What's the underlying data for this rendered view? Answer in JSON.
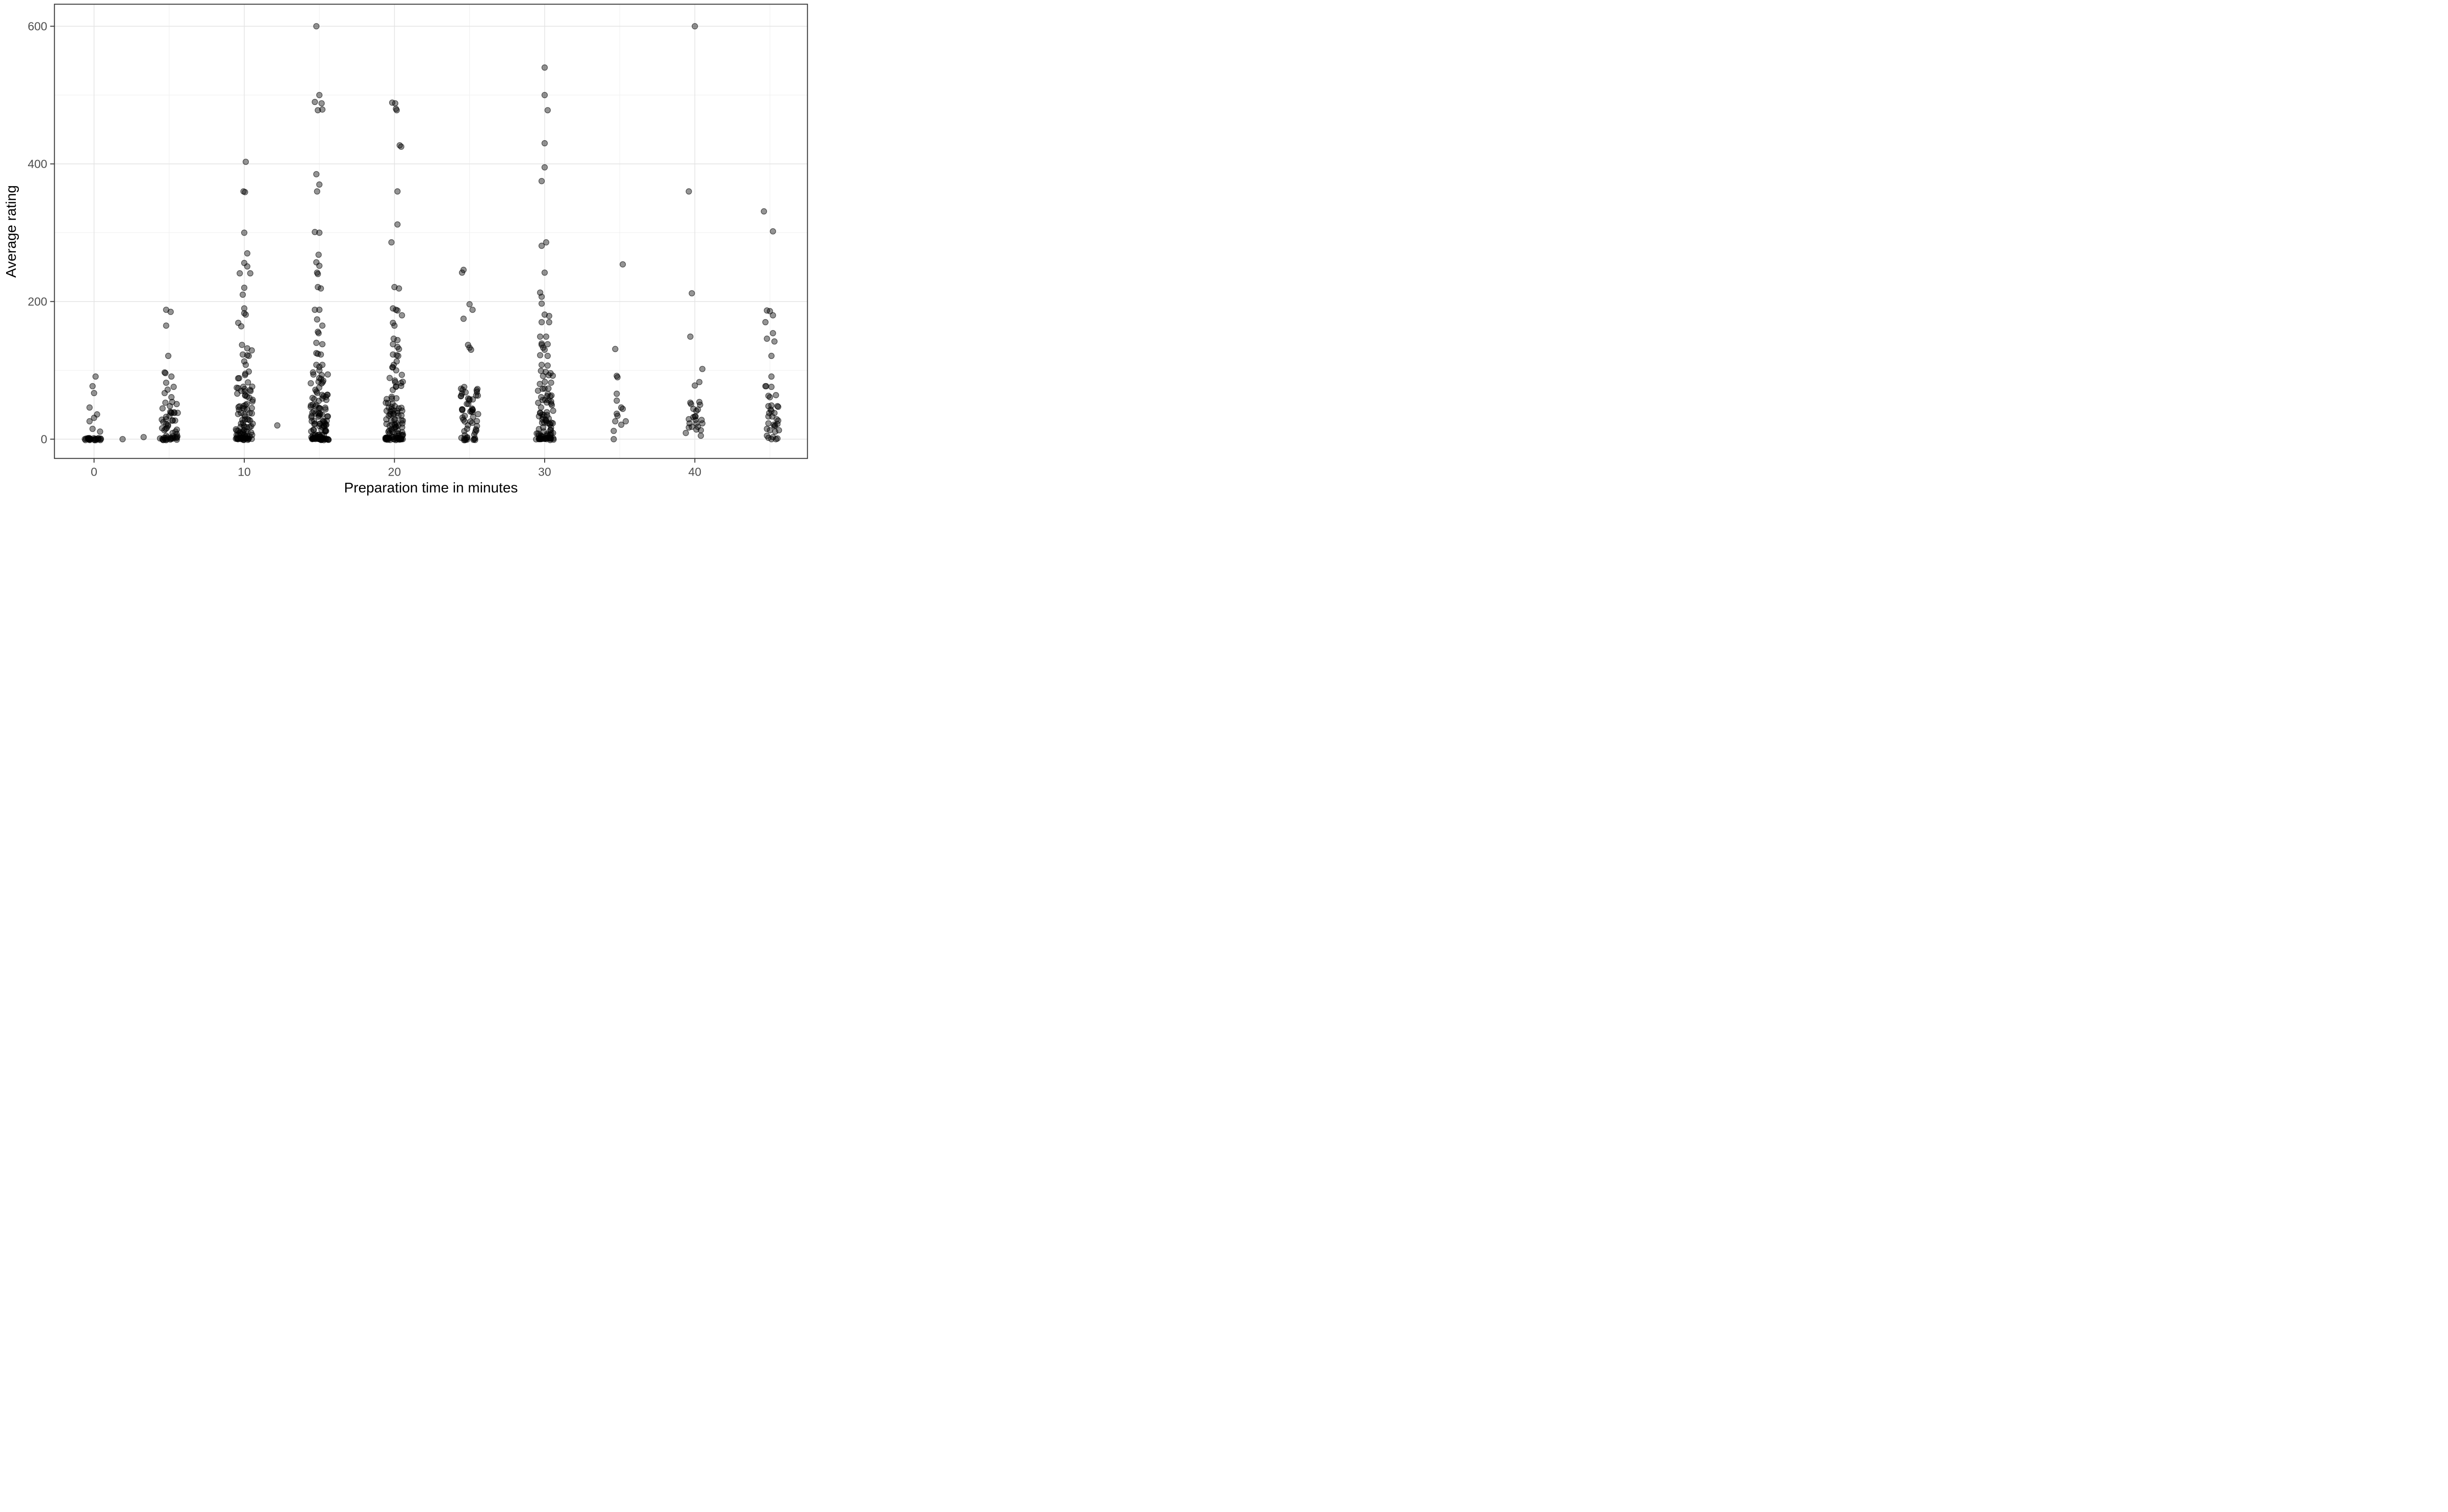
{
  "figure": {
    "background": "#ffffff",
    "x_axis_title": "Preparation time in minutes",
    "y_axis_title": "Average rating"
  },
  "chart_data": {
    "type": "scatter",
    "subtype": "jitter-strip",
    "title": "",
    "xlabel": "Preparation time in minutes",
    "ylabel": "Average rating",
    "xlim": [
      -2.64,
      47.5
    ],
    "ylim": [
      -28,
      632
    ],
    "x_major_ticks": [
      0,
      10,
      20,
      30,
      40
    ],
    "x_tick_labels": [
      "0",
      "10",
      "20",
      "30",
      "40"
    ],
    "x_minor_ticks": [
      5,
      15,
      25,
      35,
      45
    ],
    "y_major_ticks": [
      0,
      200,
      400,
      600
    ],
    "y_tick_labels": [
      "0",
      "200",
      "400",
      "600"
    ],
    "y_minor_ticks": [
      100,
      300,
      500
    ],
    "grid": "on",
    "legend": "none",
    "style": {
      "panel_border_color": "#333333",
      "major_grid_color": "#e3e3e3",
      "minor_grid_color": "#f0f0f0",
      "tick_color": "#333333",
      "tick_label_color": "#4d4d4d",
      "point_color": "#000000",
      "point_fill_opacity": 0.42,
      "point_stroke_opacity": 0.6,
      "point_radius": 5.5
    },
    "seed": 42,
    "jitter_halfwidth": 0.58,
    "singles": [
      [
        1.9,
        0
      ],
      [
        3.3,
        3
      ],
      [
        12.2,
        20
      ]
    ],
    "clusters": [
      {
        "x": 0,
        "outliers": [
          [
            0.1,
            91
          ],
          [
            -0.1,
            77
          ],
          [
            0,
            67
          ],
          [
            -0.3,
            46
          ],
          [
            0.2,
            36
          ],
          [
            0,
            31
          ],
          [
            -0.3,
            26
          ],
          [
            -0.1,
            15
          ],
          [
            0.4,
            11
          ]
        ],
        "mass": {
          "count": 0,
          "ymax": 0,
          "pow": 1,
          "pile0": 26
        }
      },
      {
        "x": 5,
        "outliers": [
          [
            -0.2,
            188
          ],
          [
            0.1,
            185
          ],
          [
            -0.2,
            165
          ],
          [
            -0.06,
            121
          ],
          [
            -0.3,
            97
          ],
          [
            -0.25,
            96
          ],
          [
            0.15,
            91
          ],
          [
            -0.2,
            82
          ],
          [
            0.3,
            76
          ],
          [
            -0.1,
            72
          ],
          [
            -0.3,
            67
          ],
          [
            0.15,
            61
          ],
          [
            0.2,
            54
          ],
          [
            -0.25,
            53
          ],
          [
            0.5,
            51
          ],
          [
            0.05,
            48
          ],
          [
            0.35,
            38
          ]
        ],
        "mass": {
          "count": 34,
          "ymax": 45,
          "pow": 1.4,
          "pile0": 13
        }
      },
      {
        "x": 10,
        "outliers": [
          [
            0.1,
            403
          ],
          [
            -0.05,
            360
          ],
          [
            0.05,
            359
          ],
          [
            0,
            300
          ],
          [
            0.2,
            270
          ],
          [
            0,
            256
          ],
          [
            0.2,
            251
          ],
          [
            -0.3,
            241
          ],
          [
            0.4,
            241
          ],
          [
            0,
            220
          ],
          [
            -0.1,
            210
          ],
          [
            0,
            190
          ],
          [
            0,
            183
          ],
          [
            0.1,
            181
          ],
          [
            -0.4,
            169
          ],
          [
            -0.2,
            164
          ],
          [
            -0.15,
            137
          ],
          [
            0.2,
            132
          ],
          [
            0.5,
            129
          ],
          [
            -0.1,
            123
          ],
          [
            0.2,
            122
          ],
          [
            0.3,
            121
          ],
          [
            0,
            113
          ],
          [
            0.1,
            108
          ]
        ],
        "mass": {
          "count": 82,
          "ymax": 100,
          "pow": 2.1,
          "pile0": 15
        }
      },
      {
        "x": 15,
        "outliers": [
          [
            -0.2,
            600
          ],
          [
            0,
            500
          ],
          [
            -0.3,
            490
          ],
          [
            0.15,
            488
          ],
          [
            0.2,
            479
          ],
          [
            -0.1,
            478
          ],
          [
            -0.2,
            385
          ],
          [
            0,
            370
          ],
          [
            -0.15,
            360
          ],
          [
            -0.3,
            301
          ],
          [
            0,
            300
          ],
          [
            -0.05,
            268
          ],
          [
            -0.2,
            257
          ],
          [
            0,
            252
          ],
          [
            -0.15,
            242
          ],
          [
            -0.1,
            240
          ],
          [
            -0.1,
            221
          ],
          [
            0.1,
            219
          ],
          [
            -0.3,
            188
          ],
          [
            0,
            188
          ],
          [
            -0.15,
            174
          ],
          [
            0.2,
            165
          ],
          [
            -0.1,
            156
          ],
          [
            -0.05,
            154
          ],
          [
            -0.2,
            140
          ],
          [
            0.2,
            138
          ],
          [
            -0.2,
            125
          ],
          [
            -0.1,
            124
          ],
          [
            0.1,
            123
          ],
          [
            -0.2,
            108
          ],
          [
            0.2,
            108
          ],
          [
            0,
            105
          ],
          [
            0,
            100
          ]
        ],
        "mass": {
          "count": 100,
          "ymax": 98,
          "pow": 2.0,
          "pile0": 18
        }
      },
      {
        "x": 20,
        "outliers": [
          [
            -0.15,
            489
          ],
          [
            0.05,
            488
          ],
          [
            0.1,
            480
          ],
          [
            0.15,
            478
          ],
          [
            0.35,
            427
          ],
          [
            0.45,
            425
          ],
          [
            0.2,
            360
          ],
          [
            0.2,
            312
          ],
          [
            -0.2,
            286
          ],
          [
            0,
            221
          ],
          [
            0.3,
            219
          ],
          [
            -0.1,
            190
          ],
          [
            0.1,
            188
          ],
          [
            0.2,
            187
          ],
          [
            0.5,
            180
          ],
          [
            -0.1,
            169
          ],
          [
            0,
            165
          ],
          [
            -0.05,
            146
          ],
          [
            0.2,
            144
          ],
          [
            -0.1,
            138
          ],
          [
            0.2,
            134
          ],
          [
            0.3,
            131
          ],
          [
            -0.1,
            123
          ],
          [
            0.15,
            122
          ],
          [
            0.25,
            121
          ],
          [
            0.15,
            113
          ],
          [
            -0.05,
            108
          ]
        ],
        "mass": {
          "count": 88,
          "ymax": 105,
          "pow": 2.0,
          "pile0": 16
        }
      },
      {
        "x": 25,
        "outliers": [
          [
            -0.4,
            246
          ],
          [
            -0.5,
            242
          ],
          [
            0,
            196
          ],
          [
            0.2,
            188
          ],
          [
            -0.4,
            175
          ],
          [
            -0.1,
            137
          ],
          [
            0,
            133
          ],
          [
            0.1,
            130
          ]
        ],
        "mass": {
          "count": 48,
          "ymax": 78,
          "pow": 1.3,
          "pile0": 9
        }
      },
      {
        "x": 30,
        "outliers": [
          [
            0,
            540
          ],
          [
            0,
            500
          ],
          [
            0.2,
            478
          ],
          [
            0,
            430
          ],
          [
            0,
            395
          ],
          [
            -0.2,
            375
          ],
          [
            0.1,
            286
          ],
          [
            -0.2,
            281
          ],
          [
            0,
            242
          ],
          [
            -0.3,
            213
          ],
          [
            -0.2,
            207
          ],
          [
            -0.2,
            197
          ],
          [
            0,
            181
          ],
          [
            0.3,
            179
          ],
          [
            -0.2,
            170
          ],
          [
            0.3,
            170
          ],
          [
            -0.3,
            149
          ],
          [
            0.1,
            149
          ],
          [
            -0.2,
            139
          ],
          [
            0.2,
            138
          ],
          [
            -0.2,
            137
          ],
          [
            -0.1,
            133
          ],
          [
            0,
            130
          ],
          [
            -0.3,
            122
          ],
          [
            0.2,
            121
          ],
          [
            -0.2,
            108
          ],
          [
            0.2,
            107
          ]
        ],
        "mass": {
          "count": 80,
          "ymax": 100,
          "pow": 2.0,
          "pile0": 14
        }
      },
      {
        "x": 35,
        "outliers": [
          [
            0.2,
            254
          ],
          [
            -0.3,
            131
          ],
          [
            -0.2,
            92
          ],
          [
            -0.15,
            90
          ],
          [
            -0.2,
            66
          ],
          [
            -0.2,
            56
          ],
          [
            0.1,
            46
          ],
          [
            0.2,
            44
          ],
          [
            -0.2,
            37
          ],
          [
            -0.15,
            34
          ],
          [
            -0.3,
            26
          ],
          [
            0.4,
            26
          ],
          [
            0.1,
            21
          ],
          [
            -0.4,
            12
          ],
          [
            -0.4,
            0
          ]
        ],
        "mass": {
          "count": 0,
          "ymax": 0,
          "pow": 1,
          "pile0": 0
        }
      },
      {
        "x": 40,
        "outliers": [
          [
            0,
            600
          ],
          [
            -0.4,
            360
          ],
          [
            -0.2,
            212
          ],
          [
            -0.3,
            149
          ],
          [
            0.5,
            102
          ],
          [
            0.3,
            83
          ],
          [
            0,
            78
          ],
          [
            -0.3,
            53
          ],
          [
            -0.25,
            51
          ],
          [
            0.3,
            54
          ],
          [
            0.35,
            50
          ],
          [
            -0.1,
            44
          ],
          [
            0.2,
            43
          ],
          [
            0.1,
            41
          ],
          [
            0,
            33
          ],
          [
            0.05,
            33
          ],
          [
            -0.1,
            32
          ],
          [
            -0.4,
            29
          ],
          [
            0.05,
            28
          ],
          [
            0.45,
            28
          ],
          [
            -0.35,
            23
          ],
          [
            0.1,
            23
          ],
          [
            0.5,
            23
          ],
          [
            -0.2,
            18
          ],
          [
            0.2,
            18
          ],
          [
            -0.4,
            17
          ],
          [
            0.1,
            14
          ],
          [
            0.4,
            13
          ],
          [
            -0.6,
            9
          ],
          [
            0.4,
            5
          ]
        ],
        "mass": {
          "count": 0,
          "ymax": 0,
          "pow": 1,
          "pile0": 0
        }
      },
      {
        "x": 45,
        "outliers": [
          [
            -0.4,
            331
          ],
          [
            0.2,
            302
          ],
          [
            -0.2,
            187
          ],
          [
            0,
            186
          ],
          [
            0.2,
            180
          ],
          [
            -0.3,
            170
          ],
          [
            0.2,
            154
          ],
          [
            -0.2,
            146
          ],
          [
            0.3,
            142
          ],
          [
            0.1,
            121
          ],
          [
            0.1,
            91
          ],
          [
            -0.3,
            77
          ],
          [
            -0.25,
            77
          ],
          [
            0.1,
            76
          ],
          [
            -0.1,
            63
          ],
          [
            0,
            61
          ],
          [
            0.4,
            64
          ],
          [
            -0.1,
            48
          ],
          [
            0.1,
            49
          ],
          [
            0.5,
            48
          ],
          [
            0.55,
            47
          ],
          [
            0.05,
            43
          ],
          [
            0.1,
            41
          ],
          [
            -0.05,
            38
          ],
          [
            0.3,
            38
          ],
          [
            -0.1,
            33
          ],
          [
            0.15,
            33
          ],
          [
            0.45,
            29
          ],
          [
            0.55,
            27
          ],
          [
            -0.1,
            23
          ],
          [
            0.25,
            21
          ],
          [
            0.3,
            19
          ],
          [
            0.35,
            20
          ],
          [
            0.5,
            22
          ],
          [
            -0.2,
            15
          ],
          [
            0,
            13
          ],
          [
            0.35,
            11
          ],
          [
            0.6,
            13
          ],
          [
            -0.2,
            5
          ],
          [
            -0.1,
            2
          ],
          [
            0.1,
            0
          ],
          [
            0.2,
            3
          ],
          [
            0.4,
            0
          ],
          [
            0.5,
            1
          ]
        ],
        "mass": {
          "count": 0,
          "ymax": 0,
          "pow": 1,
          "pile0": 0
        }
      }
    ]
  }
}
